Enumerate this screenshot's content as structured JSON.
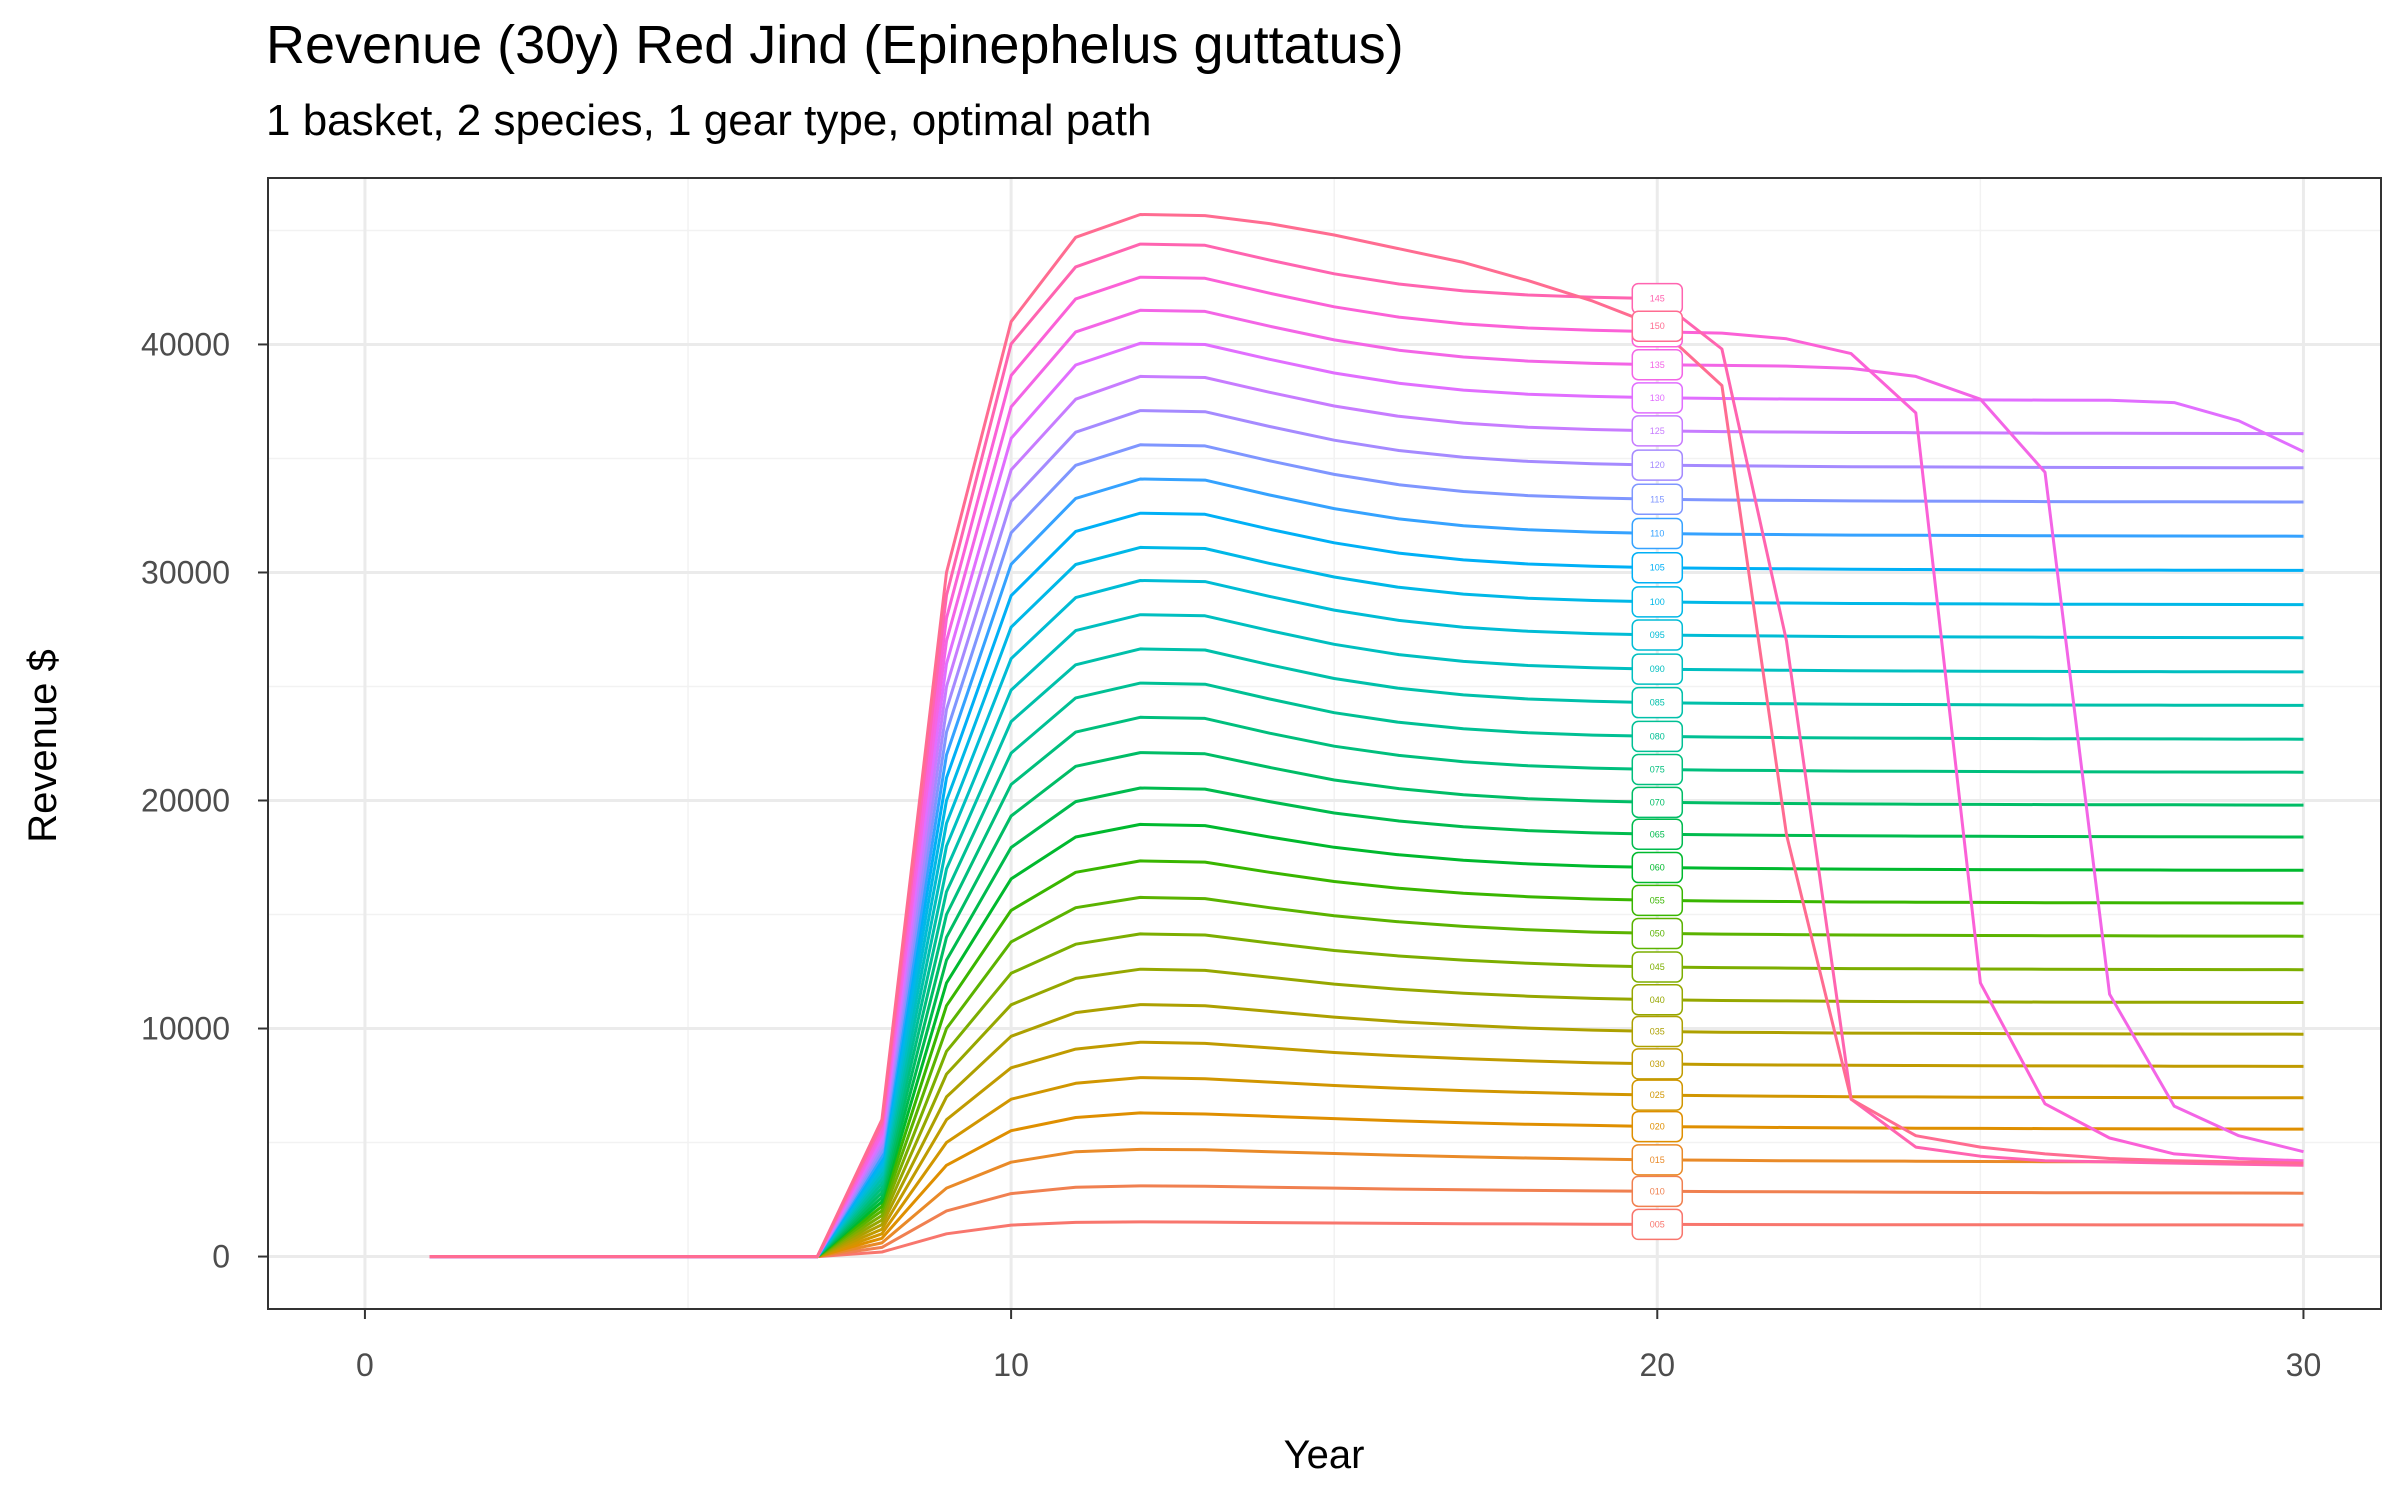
{
  "chart_data": {
    "type": "line",
    "title": "Revenue (30y) Red Jind (Epinephelus guttatus)",
    "subtitle": "1 basket, 2 species, 1 gear type, optimal path",
    "xlabel": "Year",
    "ylabel": "Revenue $",
    "xlim": [
      -1.5,
      31.2
    ],
    "ylim": [
      -2300,
      47300
    ],
    "x_ticks": [
      0,
      10,
      20,
      30
    ],
    "x_tick_labels": [
      "0",
      "10",
      "20",
      "30"
    ],
    "y_ticks": [
      0,
      10000,
      20000,
      30000,
      40000
    ],
    "y_tick_labels": [
      "0",
      "10000",
      "20000",
      "30000",
      "40000"
    ],
    "grid": true,
    "legend": "none (direct labels at x = 20)",
    "label_x": 20,
    "x": [
      1,
      2,
      3,
      4,
      5,
      6,
      7,
      8,
      9,
      10,
      11,
      12,
      13,
      14,
      15,
      16,
      17,
      18,
      19,
      20,
      21,
      22,
      23,
      24,
      25,
      26,
      27,
      28,
      29,
      30
    ],
    "series": [
      {
        "name": "005",
        "color": "#F8766D",
        "values": [
          0,
          0,
          0,
          0,
          0,
          0,
          0,
          200,
          1000,
          1380,
          1500,
          1520,
          1510,
          1490,
          1470,
          1455,
          1440,
          1430,
          1420,
          1410,
          1405,
          1400,
          1398,
          1396,
          1394,
          1392,
          1390,
          1388,
          1387,
          1386
        ]
      },
      {
        "name": "010",
        "color": "#F08050",
        "values": [
          0,
          0,
          0,
          0,
          0,
          0,
          0,
          400,
          2000,
          2760,
          3040,
          3100,
          3080,
          3040,
          3000,
          2960,
          2930,
          2900,
          2880,
          2860,
          2850,
          2840,
          2830,
          2820,
          2810,
          2800,
          2795,
          2790,
          2785,
          2780
        ]
      },
      {
        "name": "015",
        "color": "#E98A28",
        "values": [
          0,
          0,
          0,
          0,
          0,
          0,
          0,
          600,
          3000,
          4140,
          4600,
          4700,
          4680,
          4600,
          4520,
          4440,
          4380,
          4320,
          4280,
          4240,
          4220,
          4200,
          4190,
          4180,
          4170,
          4160,
          4155,
          4150,
          4145,
          4140
        ]
      },
      {
        "name": "020",
        "color": "#DF8F00",
        "values": [
          0,
          0,
          0,
          0,
          0,
          0,
          0,
          800,
          4000,
          5520,
          6100,
          6300,
          6250,
          6150,
          6050,
          5950,
          5870,
          5800,
          5750,
          5700,
          5680,
          5660,
          5640,
          5630,
          5620,
          5610,
          5605,
          5600,
          5595,
          5590
        ]
      },
      {
        "name": "025",
        "color": "#D19600",
        "values": [
          0,
          0,
          0,
          0,
          0,
          0,
          0,
          1000,
          5000,
          6900,
          7600,
          7850,
          7800,
          7650,
          7500,
          7380,
          7280,
          7200,
          7130,
          7080,
          7050,
          7030,
          7010,
          7000,
          6990,
          6980,
          6975,
          6970,
          6965,
          6960
        ]
      },
      {
        "name": "030",
        "color": "#C09B00",
        "values": [
          0,
          0,
          0,
          0,
          0,
          0,
          0,
          1200,
          6000,
          8280,
          9100,
          9400,
          9350,
          9150,
          8950,
          8800,
          8680,
          8580,
          8500,
          8450,
          8420,
          8400,
          8390,
          8380,
          8370,
          8360,
          8355,
          8350,
          8345,
          8340
        ]
      },
      {
        "name": "035",
        "color": "#ADA000",
        "values": [
          0,
          0,
          0,
          0,
          0,
          0,
          0,
          1400,
          7000,
          9660,
          10700,
          11050,
          11000,
          10750,
          10500,
          10300,
          10150,
          10020,
          9930,
          9870,
          9840,
          9820,
          9800,
          9790,
          9780,
          9770,
          9765,
          9760,
          9755,
          9750
        ]
      },
      {
        "name": "040",
        "color": "#96A700",
        "values": [
          0,
          0,
          0,
          0,
          0,
          0,
          0,
          1600,
          8000,
          11040,
          12200,
          12600,
          12550,
          12250,
          11950,
          11720,
          11550,
          11420,
          11320,
          11260,
          11230,
          11210,
          11190,
          11180,
          11170,
          11160,
          11155,
          11150,
          11145,
          11140
        ]
      },
      {
        "name": "045",
        "color": "#7CAE00",
        "values": [
          0,
          0,
          0,
          0,
          0,
          0,
          0,
          1800,
          9000,
          12420,
          13700,
          14150,
          14100,
          13750,
          13420,
          13180,
          13000,
          12860,
          12760,
          12700,
          12670,
          12650,
          12630,
          12620,
          12610,
          12600,
          12595,
          12590,
          12585,
          12580
        ]
      },
      {
        "name": "050",
        "color": "#5BB300",
        "values": [
          0,
          0,
          0,
          0,
          0,
          0,
          0,
          2000,
          10000,
          13800,
          15300,
          15750,
          15700,
          15300,
          14950,
          14680,
          14480,
          14330,
          14230,
          14170,
          14140,
          14120,
          14100,
          14090,
          14080,
          14070,
          14065,
          14060,
          14055,
          14050
        ]
      },
      {
        "name": "055",
        "color": "#39B600",
        "values": [
          0,
          0,
          0,
          0,
          0,
          0,
          0,
          2200,
          11000,
          15180,
          16850,
          17350,
          17300,
          16850,
          16450,
          16150,
          15930,
          15780,
          15680,
          15620,
          15590,
          15570,
          15550,
          15540,
          15530,
          15520,
          15515,
          15510,
          15505,
          15500
        ]
      },
      {
        "name": "060",
        "color": "#00B92E",
        "values": [
          0,
          0,
          0,
          0,
          0,
          0,
          0,
          2400,
          12000,
          16560,
          18400,
          18950,
          18900,
          18400,
          17950,
          17620,
          17380,
          17220,
          17120,
          17060,
          17030,
          17010,
          16990,
          16980,
          16970,
          16960,
          16955,
          16950,
          16945,
          16940
        ]
      },
      {
        "name": "065",
        "color": "#00BB4E",
        "values": [
          0,
          0,
          0,
          0,
          0,
          0,
          0,
          2600,
          13000,
          17940,
          19950,
          20550,
          20500,
          19950,
          19450,
          19100,
          18850,
          18680,
          18580,
          18520,
          18490,
          18470,
          18450,
          18440,
          18430,
          18420,
          18415,
          18410,
          18405,
          18400
        ]
      },
      {
        "name": "070",
        "color": "#00BD66",
        "values": [
          0,
          0,
          0,
          0,
          0,
          0,
          0,
          2800,
          14000,
          19320,
          21500,
          22100,
          22050,
          21450,
          20900,
          20520,
          20250,
          20080,
          19980,
          19920,
          19890,
          19870,
          19850,
          19840,
          19830,
          19820,
          19815,
          19810,
          19805,
          19800
        ]
      },
      {
        "name": "075",
        "color": "#00BF7D",
        "values": [
          0,
          0,
          0,
          0,
          0,
          0,
          0,
          3000,
          15000,
          20700,
          23000,
          23650,
          23600,
          22950,
          22380,
          21980,
          21700,
          21520,
          21420,
          21360,
          21330,
          21310,
          21290,
          21280,
          21270,
          21260,
          21255,
          21250,
          21245,
          21240
        ]
      },
      {
        "name": "080",
        "color": "#00C094",
        "values": [
          0,
          0,
          0,
          0,
          0,
          0,
          0,
          3200,
          16000,
          22080,
          24500,
          25150,
          25100,
          24450,
          23850,
          23430,
          23150,
          22970,
          22870,
          22810,
          22780,
          22760,
          22740,
          22730,
          22720,
          22710,
          22705,
          22700,
          22695,
          22690
        ]
      },
      {
        "name": "085",
        "color": "#00C0AA",
        "values": [
          0,
          0,
          0,
          0,
          0,
          0,
          0,
          3400,
          17000,
          23460,
          25950,
          26650,
          26600,
          25950,
          25350,
          24920,
          24630,
          24450,
          24350,
          24290,
          24260,
          24240,
          24220,
          24210,
          24200,
          24190,
          24185,
          24180,
          24175,
          24170
        ]
      },
      {
        "name": "090",
        "color": "#00BFC0",
        "values": [
          0,
          0,
          0,
          0,
          0,
          0,
          0,
          3600,
          18000,
          24840,
          27450,
          28150,
          28100,
          27450,
          26850,
          26400,
          26100,
          25920,
          25820,
          25760,
          25730,
          25710,
          25690,
          25680,
          25670,
          25660,
          25655,
          25650,
          25645,
          25640
        ]
      },
      {
        "name": "095",
        "color": "#00BCD5",
        "values": [
          0,
          0,
          0,
          0,
          0,
          0,
          0,
          3800,
          19000,
          26220,
          28900,
          29650,
          29600,
          28950,
          28350,
          27900,
          27600,
          27420,
          27320,
          27260,
          27230,
          27210,
          27190,
          27180,
          27170,
          27160,
          27155,
          27150,
          27145,
          27140
        ]
      },
      {
        "name": "100",
        "color": "#00B8E7",
        "values": [
          0,
          0,
          0,
          0,
          0,
          0,
          0,
          4000,
          20000,
          27600,
          30350,
          31100,
          31050,
          30400,
          29800,
          29350,
          29050,
          28870,
          28770,
          28710,
          28680,
          28660,
          28640,
          28630,
          28620,
          28610,
          28605,
          28600,
          28595,
          28590
        ]
      },
      {
        "name": "105",
        "color": "#00B0F6",
        "values": [
          0,
          0,
          0,
          0,
          0,
          0,
          0,
          4200,
          21000,
          28980,
          31800,
          32600,
          32550,
          31900,
          31300,
          30850,
          30550,
          30370,
          30270,
          30210,
          30180,
          30160,
          30140,
          30130,
          30120,
          30110,
          30105,
          30100,
          30095,
          30090
        ]
      },
      {
        "name": "110",
        "color": "#35A2FF",
        "values": [
          0,
          0,
          0,
          0,
          0,
          0,
          0,
          4400,
          22000,
          30360,
          33250,
          34100,
          34050,
          33400,
          32800,
          32350,
          32050,
          31870,
          31770,
          31710,
          31680,
          31660,
          31640,
          31630,
          31620,
          31610,
          31605,
          31600,
          31595,
          31590
        ]
      },
      {
        "name": "115",
        "color": "#7F96FF",
        "values": [
          0,
          0,
          0,
          0,
          0,
          0,
          0,
          4600,
          23000,
          31740,
          34700,
          35600,
          35550,
          34900,
          34300,
          33850,
          33550,
          33370,
          33270,
          33210,
          33180,
          33160,
          33140,
          33130,
          33120,
          33110,
          33105,
          33100,
          33095,
          33090
        ]
      },
      {
        "name": "120",
        "color": "#A58AFF",
        "values": [
          0,
          0,
          0,
          0,
          0,
          0,
          0,
          4800,
          24000,
          33120,
          36150,
          37100,
          37050,
          36400,
          35800,
          35350,
          35050,
          34870,
          34770,
          34710,
          34680,
          34660,
          34640,
          34630,
          34620,
          34610,
          34605,
          34600,
          34595,
          34590
        ]
      },
      {
        "name": "125",
        "color": "#C77CFF",
        "values": [
          0,
          0,
          0,
          0,
          0,
          0,
          0,
          5000,
          25000,
          34500,
          37600,
          38600,
          38550,
          37900,
          37300,
          36850,
          36550,
          36370,
          36270,
          36210,
          36180,
          36160,
          36140,
          36130,
          36120,
          36110,
          36105,
          36100,
          36095,
          36090
        ]
      },
      {
        "name": "130",
        "color": "#E16EFF",
        "values": [
          0,
          0,
          0,
          0,
          0,
          0,
          0,
          5200,
          26000,
          35880,
          39100,
          40050,
          40000,
          39350,
          38750,
          38300,
          38000,
          37820,
          37720,
          37660,
          37630,
          37610,
          37590,
          37580,
          37570,
          37560,
          37550,
          37450,
          36650,
          35300
        ]
      },
      {
        "name": "135",
        "color": "#F365E6",
        "values": [
          0,
          0,
          0,
          0,
          0,
          0,
          0,
          5400,
          27000,
          37260,
          40550,
          41500,
          41450,
          40800,
          40200,
          39750,
          39450,
          39270,
          39170,
          39110,
          39080,
          39050,
          38950,
          38600,
          37600,
          34400,
          11500,
          6600,
          5300,
          4600
        ]
      },
      {
        "name": "140",
        "color": "#FB61D7",
        "values": [
          0,
          0,
          0,
          0,
          0,
          0,
          0,
          5600,
          28000,
          38640,
          42000,
          42950,
          42900,
          42250,
          41650,
          41200,
          40900,
          40720,
          40620,
          40560,
          40500,
          40250,
          39600,
          37000,
          12000,
          6700,
          5200,
          4500,
          4300,
          4200
        ]
      },
      {
        "name": "145",
        "color": "#FF64B0",
        "values": [
          0,
          0,
          0,
          0,
          0,
          0,
          0,
          5800,
          29000,
          40020,
          43400,
          44400,
          44350,
          43700,
          43100,
          42650,
          42350,
          42170,
          42070,
          42010,
          39800,
          27000,
          6900,
          4800,
          4400,
          4200,
          4150,
          4100,
          4050,
          4000
        ]
      },
      {
        "name": "150",
        "color": "#FF6C91",
        "values": [
          0,
          0,
          0,
          0,
          0,
          0,
          0,
          6000,
          30000,
          41000,
          44700,
          45700,
          45650,
          45300,
          44800,
          44200,
          43600,
          42800,
          41900,
          40800,
          38200,
          18500,
          6900,
          5300,
          4800,
          4500,
          4300,
          4200,
          4150,
          4100
        ]
      }
    ]
  }
}
